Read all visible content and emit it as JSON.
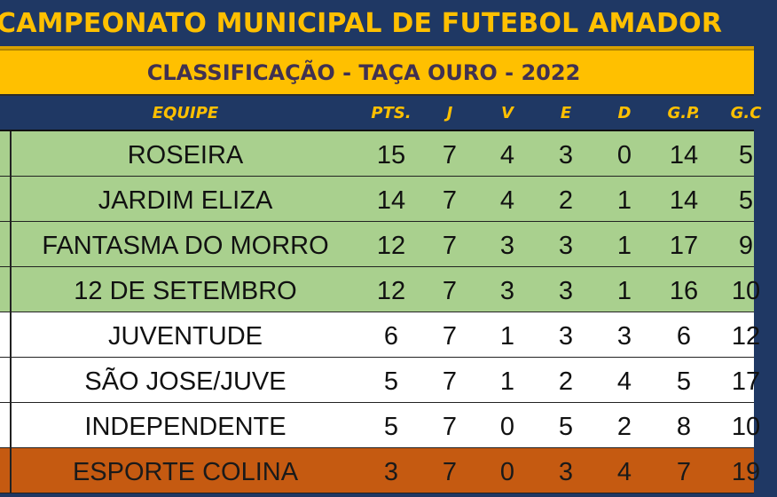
{
  "title": "CAMPEONATO MUNICIPAL DE FUTEBOL AMADOR",
  "subtitle": "CLASSIFICAÇÃO - TAÇA OURO - 2022",
  "columns": {
    "team": "EQUIPE",
    "pts": "PTS.",
    "j": "J",
    "v": "V",
    "e": "E",
    "d": "D",
    "gp": "G.P.",
    "gc": "G.C"
  },
  "colors": {
    "title_bg": "#1f3864",
    "title_text": "#ffc000",
    "subtitle_bg": "#ffc000",
    "subtitle_text": "#403151",
    "qualified_row": "#a9d08e",
    "normal_row": "#ffffff",
    "relegation_row": "#c55a11"
  },
  "rows": [
    {
      "status": "green",
      "team": "ROSEIRA",
      "pts": "15",
      "j": "7",
      "v": "4",
      "e": "3",
      "d": "0",
      "gp": "14",
      "gc": "5"
    },
    {
      "status": "green",
      "team": "JARDIM ELIZA",
      "pts": "14",
      "j": "7",
      "v": "4",
      "e": "2",
      "d": "1",
      "gp": "14",
      "gc": "5"
    },
    {
      "status": "green",
      "team": "FANTASMA DO MORRO",
      "pts": "12",
      "j": "7",
      "v": "3",
      "e": "3",
      "d": "1",
      "gp": "17",
      "gc": "9"
    },
    {
      "status": "green",
      "team": "12 DE SETEMBRO",
      "pts": "12",
      "j": "7",
      "v": "3",
      "e": "3",
      "d": "1",
      "gp": "16",
      "gc": "10"
    },
    {
      "status": "white",
      "team": "JUVENTUDE",
      "pts": "6",
      "j": "7",
      "v": "1",
      "e": "3",
      "d": "3",
      "gp": "6",
      "gc": "12"
    },
    {
      "status": "white",
      "team": "SÃO JOSE/JUVE",
      "pts": "5",
      "j": "7",
      "v": "1",
      "e": "2",
      "d": "4",
      "gp": "5",
      "gc": "17"
    },
    {
      "status": "white",
      "team": "INDEPENDENTE",
      "pts": "5",
      "j": "7",
      "v": "0",
      "e": "5",
      "d": "2",
      "gp": "8",
      "gc": "10"
    },
    {
      "status": "orange",
      "team": "ESPORTE COLINA",
      "pts": "3",
      "j": "7",
      "v": "0",
      "e": "3",
      "d": "4",
      "gp": "7",
      "gc": "19"
    }
  ]
}
